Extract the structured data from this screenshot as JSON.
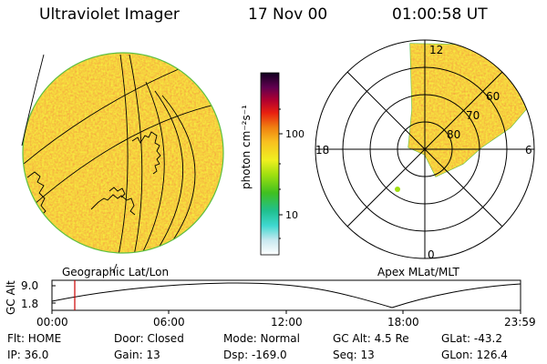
{
  "header": {
    "title": "Ultraviolet Imager",
    "date": "17 Nov 00",
    "time": "01:00:58 UT"
  },
  "panels": {
    "geographic_label": "Geographic Lat/Lon",
    "apex_label": "Apex MLat/MLT"
  },
  "colorbar": {
    "unit": "photon cm⁻²s⁻¹",
    "ticks": [
      "100",
      "10"
    ]
  },
  "polar": {
    "mlt_labels": [
      "12",
      "18",
      "6",
      "0"
    ],
    "lat_labels": [
      "60",
      "70",
      "80"
    ]
  },
  "timeline": {
    "ylabel": "GC Alt",
    "y_ticks": [
      "9.0",
      "1.8"
    ],
    "time_ticks": [
      "00:00",
      "06:00",
      "12:00",
      "18:00",
      "23:59"
    ],
    "cursor_time": "01:00"
  },
  "info": {
    "row1": {
      "filter": "Flt: HOME",
      "door": "Door: Closed",
      "mode": "Mode: Normal",
      "gc_alt": "GC Alt: 4.5 Re",
      "glat": "GLat: -43.2"
    },
    "row2": {
      "ip": "IP: 36.0",
      "gain": "Gain: 13",
      "dsp": "Dsp: -169.0",
      "seq": "Seq: 13",
      "glon": "GLon: 126.4"
    }
  },
  "colors": {
    "image_fill": "#f0a020",
    "image_edge": "#5ec040",
    "cursor": "#cc0000"
  }
}
